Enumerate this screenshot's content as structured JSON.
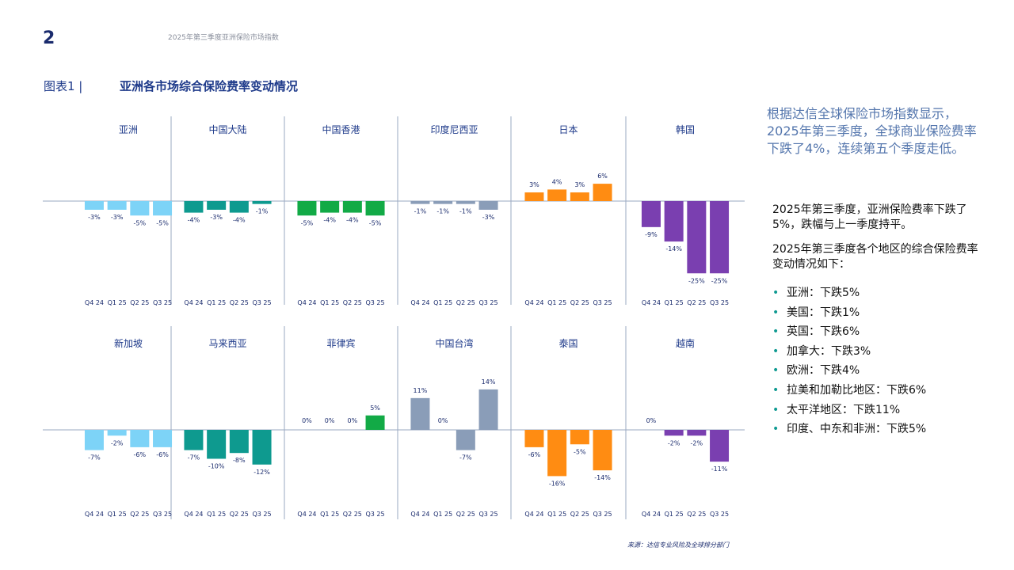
{
  "page": {
    "number": "2",
    "header_title": "2025年第三季度亚洲保险市场指数",
    "figure_label": "图表1 |",
    "figure_title": "亚洲各市场综合保险费率变动情况",
    "source": "来源：达信专业风险及全球排分部门"
  },
  "sidebar": {
    "intro": "根据达信全球保险市场指数显示，2025年第三季度，全球商业保险费率下跌了4%，连续第五个季度走低。",
    "para1": "2025年第三季度，亚洲保险费率下跌了5%，跌幅与上一季度持平。",
    "para2": "2025年第三季度各个地区的综合保险费率变动情况如下：",
    "bullets": [
      "亚洲：下跌5%",
      "美国：下跌1%",
      "英国：下跌6%",
      "加拿大：下跌3%",
      "欧洲：下跌4%",
      "拉美和加勒比地区：下跌6%",
      "太平洋地区：下跌11%",
      "印度、中东和非洲：下跌5%"
    ]
  },
  "chart_data": [
    {
      "type": "bar",
      "title": "亚洲",
      "categories": [
        "Q4 24",
        "Q1 25",
        "Q2 25",
        "Q3 25"
      ],
      "values": [
        -3,
        -3,
        -5,
        -5
      ],
      "labels": [
        "-3%",
        "-3%",
        "-5%",
        "-5%"
      ],
      "color": "#7dd3f7"
    },
    {
      "type": "bar",
      "title": "中国大陆",
      "categories": [
        "Q4 24",
        "Q1 25",
        "Q2 25",
        "Q3 25"
      ],
      "values": [
        -4,
        -3,
        -4,
        -1
      ],
      "labels": [
        "-4%",
        "-3%",
        "-4%",
        "-1%"
      ],
      "color": "#0e9a8f"
    },
    {
      "type": "bar",
      "title": "中国香港",
      "categories": [
        "Q4 24",
        "Q1 25",
        "Q2 25",
        "Q3 25"
      ],
      "values": [
        -5,
        -4,
        -4,
        -5
      ],
      "labels": [
        "-5%",
        "-4%",
        "-4%",
        "-5%"
      ],
      "color": "#12aa46"
    },
    {
      "type": "bar",
      "title": "印度尼西亚",
      "categories": [
        "Q4 24",
        "Q1 25",
        "Q2 25",
        "Q3 25"
      ],
      "values": [
        -1,
        -1,
        -1,
        -3
      ],
      "labels": [
        "-1%",
        "-1%",
        "-1%",
        "-3%"
      ],
      "color": "#8a9db8"
    },
    {
      "type": "bar",
      "title": "日本",
      "categories": [
        "Q4 24",
        "Q1 25",
        "Q2 25",
        "Q3 25"
      ],
      "values": [
        3,
        4,
        3,
        6
      ],
      "labels": [
        "3%",
        "4%",
        "3%",
        "6%"
      ],
      "color": "#ff8c12"
    },
    {
      "type": "bar",
      "title": "韩国",
      "categories": [
        "Q4 24",
        "Q1 25",
        "Q2 25",
        "Q3 25"
      ],
      "values": [
        -9,
        -14,
        -25,
        -25
      ],
      "labels": [
        "-9%",
        "-14%",
        "-25%",
        "-25%"
      ],
      "color": "#7a3fb0"
    },
    {
      "type": "bar",
      "title": "新加坡",
      "categories": [
        "Q4 24",
        "Q1 25",
        "Q2 25",
        "Q3 25"
      ],
      "values": [
        -7,
        -2,
        -6,
        -6
      ],
      "labels": [
        "-7%",
        "-2%",
        "-6%",
        "-6%"
      ],
      "color": "#7dd3f7"
    },
    {
      "type": "bar",
      "title": "马来西亚",
      "categories": [
        "Q4 24",
        "Q1 25",
        "Q2 25",
        "Q3 25"
      ],
      "values": [
        -7,
        -10,
        -8,
        -12
      ],
      "labels": [
        "-7%",
        "-10%",
        "-8%",
        "-12%"
      ],
      "color": "#0e9a8f"
    },
    {
      "type": "bar",
      "title": "菲律宾",
      "categories": [
        "Q4 24",
        "Q1 25",
        "Q2 25",
        "Q3 25"
      ],
      "values": [
        0,
        0,
        0,
        5
      ],
      "labels": [
        "0%",
        "0%",
        "0%",
        "5%"
      ],
      "color": "#12aa46"
    },
    {
      "type": "bar",
      "title": "中国台湾",
      "categories": [
        "Q4 24",
        "Q1 25",
        "Q2 25",
        "Q3 25"
      ],
      "values": [
        11,
        0,
        -7,
        14
      ],
      "labels": [
        "11%",
        "0%",
        "-7%",
        "14%"
      ],
      "color": "#8a9db8"
    },
    {
      "type": "bar",
      "title": "泰国",
      "categories": [
        "Q4 24",
        "Q1 25",
        "Q2 25",
        "Q3 25"
      ],
      "values": [
        -6,
        -16,
        -5,
        -14
      ],
      "labels": [
        "-6%",
        "-16%",
        "-5%",
        "-14%"
      ],
      "color": "#ff8c12"
    },
    {
      "type": "bar",
      "title": "越南",
      "categories": [
        "Q4 24",
        "Q1 25",
        "Q2 25",
        "Q3 25"
      ],
      "values": [
        0,
        -2,
        -2,
        -11
      ],
      "labels": [
        "0%",
        "-2%",
        "-2%",
        "-11%"
      ],
      "color": "#7a3fb0"
    }
  ]
}
